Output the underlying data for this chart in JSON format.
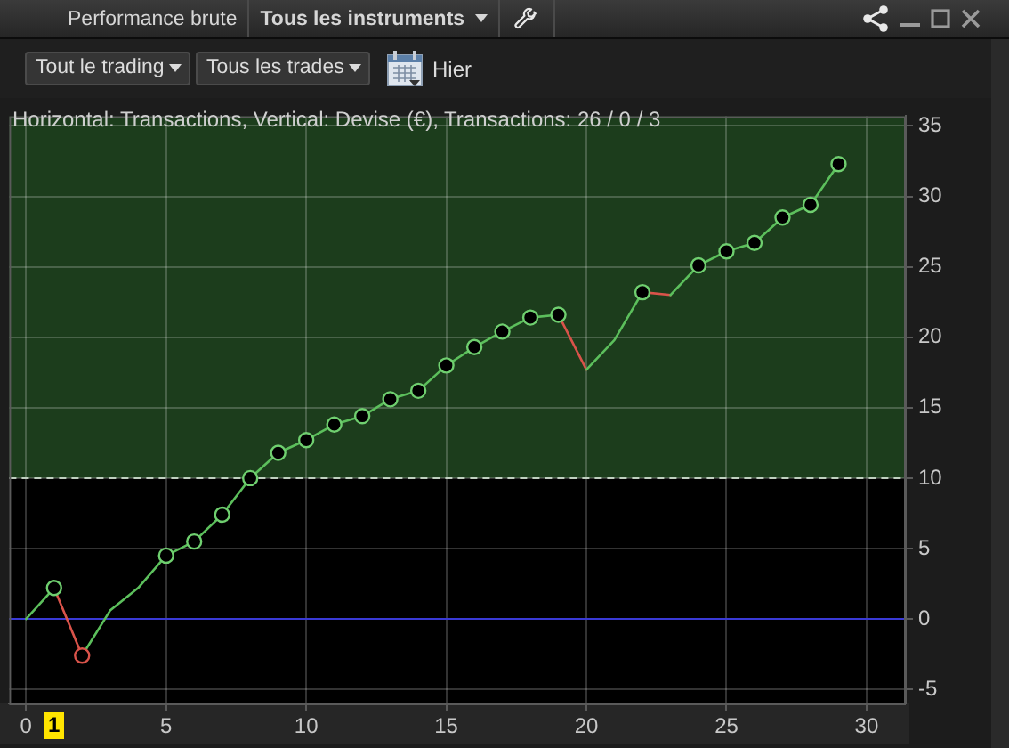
{
  "chart_data": {
    "type": "line",
    "title": "Horizontal: Transactions, Vertical: Devise (€), Transactions: 26 / 0 / 3",
    "series": [
      {
        "color": "#5cbf5c",
        "x": [
          0,
          1,
          1.5,
          2,
          3,
          4,
          5,
          6,
          7,
          8,
          9,
          10,
          11,
          12,
          13,
          14,
          15,
          16,
          17,
          18,
          19,
          19.5,
          20,
          21,
          22,
          22.5,
          23,
          24,
          25,
          26,
          27,
          28,
          29
        ],
        "values": [
          0,
          2.2,
          null,
          -2.6,
          0.6,
          2.2,
          4.5,
          5.5,
          7.4,
          10.0,
          11.8,
          12.7,
          13.8,
          14.4,
          15.6,
          16.2,
          18.0,
          19.3,
          20.4,
          21.4,
          21.6,
          null,
          17.7,
          19.8,
          23.2,
          null,
          23.0,
          25.1,
          26.1,
          26.7,
          28.5,
          29.4,
          32.3
        ]
      },
      {
        "color": "#d9534a",
        "x": [
          1,
          2,
          10.5,
          19,
          20,
          21,
          22,
          23
        ],
        "values": [
          2.2,
          -2.6,
          null,
          21.6,
          17.7,
          null,
          23.2,
          23.0
        ]
      },
      {
        "type": "scatter",
        "marker": "circle",
        "x": [
          1,
          2,
          5,
          6,
          7,
          8,
          9,
          10,
          11,
          12,
          13,
          14,
          15,
          16,
          17,
          18,
          19,
          22,
          24,
          25,
          26,
          27,
          28,
          29
        ],
        "colors": [
          "#6fcf6f",
          "#d9534a",
          "#6fcf6f",
          "#6fcf6f",
          "#6fcf6f",
          "#6fcf6f",
          "#6fcf6f",
          "#6fcf6f",
          "#6fcf6f",
          "#6fcf6f",
          "#6fcf6f",
          "#6fcf6f",
          "#6fcf6f",
          "#6fcf6f",
          "#6fcf6f",
          "#6fcf6f",
          "#6fcf6f",
          "#6fcf6f",
          "#6fcf6f",
          "#6fcf6f",
          "#6fcf6f",
          "#6fcf6f",
          "#6fcf6f",
          "#6fcf6f"
        ],
        "values": [
          2.2,
          -2.6,
          4.5,
          5.5,
          7.4,
          10.0,
          11.8,
          12.7,
          13.8,
          14.4,
          15.6,
          16.2,
          18.0,
          19.3,
          20.4,
          21.4,
          21.6,
          23.2,
          25.1,
          26.1,
          26.7,
          28.5,
          29.4,
          32.3
        ]
      }
    ],
    "xlim": [
      -0.6,
      31.4
    ],
    "xticks": [
      0,
      5,
      10,
      15,
      20,
      25,
      30
    ],
    "ylim": [
      -6,
      35.7
    ],
    "yticks": [
      -5,
      0,
      5,
      10,
      15,
      20,
      25,
      30,
      35
    ],
    "grid": true,
    "bands": [
      {
        "axis": "y",
        "from": 10,
        "to": 35.7,
        "color": "#1c3d1c"
      }
    ],
    "ref_lines": [
      {
        "axis": "y",
        "value": 10,
        "color": "#c0d0c0",
        "line_style": "dashed"
      },
      {
        "axis": "y",
        "value": 0,
        "color": "#3a3ad6",
        "line_style": "solid"
      }
    ],
    "annotations": [
      "Performance brute",
      "Tous les instruments",
      "Tout le trading",
      "Tous les trades",
      "Hier",
      "1"
    ]
  }
}
